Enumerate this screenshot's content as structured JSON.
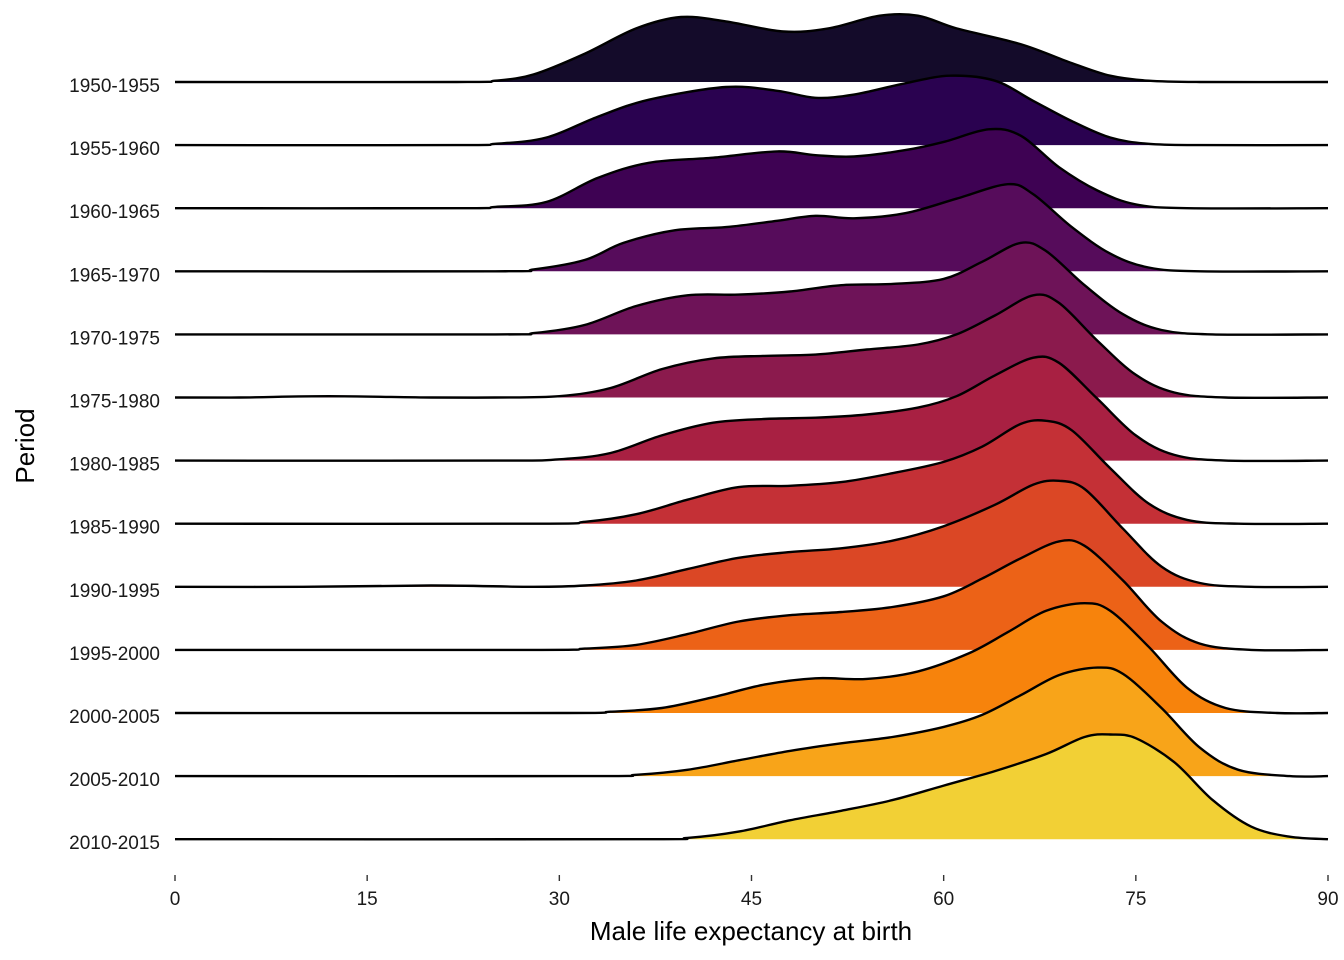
{
  "chart_data": {
    "type": "ridgeline",
    "title": "",
    "xlabel": "Male life expectancy at birth",
    "ylabel": "Period",
    "xlim": [
      0,
      90
    ],
    "x_ticks": [
      0,
      15,
      30,
      45,
      60,
      75,
      90
    ],
    "x_tick_labels": [
      "0",
      "15",
      "30",
      "45",
      "60",
      "75",
      "90"
    ],
    "grid": false,
    "legend": "none",
    "density_scale_note": "density values are relative ridge heights where 1.0 equals one row spacing",
    "series": [
      {
        "name": "1950-1955",
        "color": "#140b2a",
        "points": [
          [
            0,
            0
          ],
          [
            22,
            0
          ],
          [
            25,
            0.02
          ],
          [
            28,
            0.12
          ],
          [
            32,
            0.45
          ],
          [
            36,
            0.85
          ],
          [
            39.5,
            1.03
          ],
          [
            43,
            0.96
          ],
          [
            47.5,
            0.8
          ],
          [
            51,
            0.85
          ],
          [
            55,
            1.05
          ],
          [
            58,
            1.05
          ],
          [
            61,
            0.85
          ],
          [
            66,
            0.6
          ],
          [
            70,
            0.3
          ],
          [
            73,
            0.1
          ],
          [
            76,
            0.02
          ],
          [
            80,
            0
          ],
          [
            90,
            0
          ]
        ]
      },
      {
        "name": "1955-1960",
        "color": "#2a0250",
        "points": [
          [
            0,
            0
          ],
          [
            22,
            0
          ],
          [
            25,
            0.02
          ],
          [
            29,
            0.12
          ],
          [
            33,
            0.45
          ],
          [
            37,
            0.72
          ],
          [
            43,
            0.92
          ],
          [
            47,
            0.86
          ],
          [
            50,
            0.75
          ],
          [
            53,
            0.8
          ],
          [
            57,
            0.98
          ],
          [
            60.5,
            1.1
          ],
          [
            64,
            1.02
          ],
          [
            67,
            0.7
          ],
          [
            70,
            0.38
          ],
          [
            73,
            0.12
          ],
          [
            76,
            0.02
          ],
          [
            80,
            0
          ],
          [
            90,
            0
          ]
        ]
      },
      {
        "name": "1960-1965",
        "color": "#3e0253",
        "points": [
          [
            0,
            0
          ],
          [
            22,
            0
          ],
          [
            25,
            0.02
          ],
          [
            29,
            0.1
          ],
          [
            33,
            0.48
          ],
          [
            37,
            0.72
          ],
          [
            42,
            0.8
          ],
          [
            47,
            0.9
          ],
          [
            50,
            0.84
          ],
          [
            53,
            0.82
          ],
          [
            57,
            0.92
          ],
          [
            60,
            1.05
          ],
          [
            63.5,
            1.25
          ],
          [
            66,
            1.15
          ],
          [
            69,
            0.65
          ],
          [
            72,
            0.28
          ],
          [
            75,
            0.06
          ],
          [
            79,
            0
          ],
          [
            90,
            0
          ]
        ]
      },
      {
        "name": "1965-1970",
        "color": "#560c5b",
        "points": [
          [
            0,
            0
          ],
          [
            25,
            0
          ],
          [
            28,
            0.03
          ],
          [
            32,
            0.18
          ],
          [
            35,
            0.45
          ],
          [
            39,
            0.65
          ],
          [
            43,
            0.7
          ],
          [
            47,
            0.8
          ],
          [
            50,
            0.88
          ],
          [
            53,
            0.84
          ],
          [
            57,
            0.92
          ],
          [
            61,
            1.15
          ],
          [
            65,
            1.38
          ],
          [
            67,
            1.22
          ],
          [
            70,
            0.7
          ],
          [
            73,
            0.28
          ],
          [
            76,
            0.06
          ],
          [
            80,
            0
          ],
          [
            90,
            0
          ]
        ]
      },
      {
        "name": "1970-1975",
        "color": "#6e1358",
        "points": [
          [
            0,
            0
          ],
          [
            25,
            0
          ],
          [
            28,
            0.02
          ],
          [
            32,
            0.15
          ],
          [
            36,
            0.45
          ],
          [
            40,
            0.62
          ],
          [
            44,
            0.63
          ],
          [
            48,
            0.68
          ],
          [
            52,
            0.78
          ],
          [
            56,
            0.8
          ],
          [
            60,
            0.88
          ],
          [
            63,
            1.15
          ],
          [
            66,
            1.45
          ],
          [
            68,
            1.32
          ],
          [
            71,
            0.78
          ],
          [
            74,
            0.32
          ],
          [
            77,
            0.07
          ],
          [
            81,
            0
          ],
          [
            90,
            0
          ]
        ]
      },
      {
        "name": "1975-1980",
        "color": "#8b1a4d",
        "points": [
          [
            0,
            0
          ],
          [
            5,
            0
          ],
          [
            12,
            0.02
          ],
          [
            20,
            0
          ],
          [
            25,
            0
          ],
          [
            30,
            0.02
          ],
          [
            34,
            0.15
          ],
          [
            38,
            0.45
          ],
          [
            42,
            0.62
          ],
          [
            46,
            0.66
          ],
          [
            50,
            0.68
          ],
          [
            54,
            0.76
          ],
          [
            58,
            0.84
          ],
          [
            61,
            1.0
          ],
          [
            64,
            1.3
          ],
          [
            67,
            1.62
          ],
          [
            69,
            1.5
          ],
          [
            72,
            0.9
          ],
          [
            75,
            0.36
          ],
          [
            78,
            0.08
          ],
          [
            82,
            0
          ],
          [
            90,
            0
          ]
        ]
      },
      {
        "name": "1980-1985",
        "color": "#a82042",
        "points": [
          [
            0,
            0
          ],
          [
            25,
            0
          ],
          [
            30,
            0.02
          ],
          [
            34,
            0.12
          ],
          [
            38,
            0.4
          ],
          [
            42,
            0.6
          ],
          [
            46,
            0.66
          ],
          [
            50,
            0.68
          ],
          [
            54,
            0.73
          ],
          [
            58,
            0.84
          ],
          [
            61,
            1.02
          ],
          [
            64,
            1.35
          ],
          [
            67,
            1.63
          ],
          [
            69,
            1.55
          ],
          [
            72,
            0.98
          ],
          [
            75,
            0.4
          ],
          [
            78,
            0.09
          ],
          [
            82,
            0
          ],
          [
            90,
            0
          ]
        ]
      },
      {
        "name": "1985-1990",
        "color": "#c43036",
        "points": [
          [
            0,
            0
          ],
          [
            28,
            0
          ],
          [
            32,
            0.03
          ],
          [
            36,
            0.15
          ],
          [
            40,
            0.38
          ],
          [
            44,
            0.58
          ],
          [
            48,
            0.6
          ],
          [
            52,
            0.66
          ],
          [
            56,
            0.8
          ],
          [
            60,
            0.98
          ],
          [
            63,
            1.22
          ],
          [
            66,
            1.58
          ],
          [
            68,
            1.63
          ],
          [
            70,
            1.48
          ],
          [
            73,
            0.88
          ],
          [
            76,
            0.32
          ],
          [
            79,
            0.06
          ],
          [
            83,
            0
          ],
          [
            90,
            0
          ]
        ]
      },
      {
        "name": "1990-1995",
        "color": "#db4725",
        "points": [
          [
            0,
            0
          ],
          [
            10,
            0
          ],
          [
            20,
            0.02
          ],
          [
            28,
            0
          ],
          [
            32,
            0.02
          ],
          [
            36,
            0.1
          ],
          [
            40,
            0.28
          ],
          [
            44,
            0.46
          ],
          [
            48,
            0.55
          ],
          [
            52,
            0.61
          ],
          [
            56,
            0.73
          ],
          [
            60,
            0.96
          ],
          [
            64,
            1.3
          ],
          [
            67,
            1.62
          ],
          [
            69,
            1.68
          ],
          [
            71,
            1.55
          ],
          [
            74,
            0.92
          ],
          [
            77,
            0.32
          ],
          [
            80,
            0.06
          ],
          [
            84,
            0
          ],
          [
            90,
            0
          ]
        ]
      },
      {
        "name": "1995-2000",
        "color": "#ec6217",
        "points": [
          [
            0,
            0
          ],
          [
            28,
            0
          ],
          [
            32,
            0.02
          ],
          [
            36,
            0.08
          ],
          [
            40,
            0.25
          ],
          [
            44,
            0.45
          ],
          [
            48,
            0.55
          ],
          [
            52,
            0.6
          ],
          [
            56,
            0.68
          ],
          [
            60,
            0.85
          ],
          [
            63,
            1.13
          ],
          [
            66,
            1.45
          ],
          [
            69,
            1.72
          ],
          [
            71,
            1.65
          ],
          [
            74,
            1.1
          ],
          [
            77,
            0.45
          ],
          [
            80,
            0.1
          ],
          [
            84,
            0
          ],
          [
            90,
            0
          ]
        ]
      },
      {
        "name": "2000-2005",
        "color": "#f7830c",
        "points": [
          [
            0,
            0
          ],
          [
            30,
            0
          ],
          [
            34,
            0.02
          ],
          [
            38,
            0.08
          ],
          [
            42,
            0.25
          ],
          [
            46,
            0.45
          ],
          [
            50,
            0.55
          ],
          [
            54,
            0.54
          ],
          [
            58,
            0.66
          ],
          [
            62,
            0.95
          ],
          [
            65,
            1.28
          ],
          [
            68,
            1.62
          ],
          [
            71,
            1.74
          ],
          [
            73,
            1.62
          ],
          [
            76,
            1.05
          ],
          [
            79,
            0.4
          ],
          [
            82,
            0.08
          ],
          [
            86,
            0
          ],
          [
            90,
            0
          ]
        ]
      },
      {
        "name": "2005-2010",
        "color": "#f8a419",
        "points": [
          [
            0,
            0
          ],
          [
            32,
            0
          ],
          [
            36,
            0.02
          ],
          [
            40,
            0.1
          ],
          [
            44,
            0.25
          ],
          [
            48,
            0.4
          ],
          [
            52,
            0.52
          ],
          [
            56,
            0.62
          ],
          [
            60,
            0.78
          ],
          [
            63,
            0.97
          ],
          [
            66,
            1.28
          ],
          [
            69,
            1.6
          ],
          [
            72,
            1.72
          ],
          [
            74,
            1.62
          ],
          [
            77,
            1.08
          ],
          [
            80,
            0.45
          ],
          [
            83,
            0.1
          ],
          [
            87,
            0
          ],
          [
            90,
            0
          ]
        ]
      },
      {
        "name": "2010-2015",
        "color": "#f2d035",
        "points": [
          [
            0,
            0
          ],
          [
            36,
            0
          ],
          [
            40,
            0.02
          ],
          [
            44,
            0.12
          ],
          [
            48,
            0.3
          ],
          [
            52,
            0.45
          ],
          [
            56,
            0.62
          ],
          [
            60,
            0.85
          ],
          [
            64,
            1.08
          ],
          [
            68,
            1.35
          ],
          [
            71,
            1.62
          ],
          [
            73,
            1.66
          ],
          [
            75,
            1.6
          ],
          [
            78,
            1.22
          ],
          [
            81,
            0.62
          ],
          [
            84,
            0.2
          ],
          [
            87,
            0.04
          ],
          [
            90,
            0
          ]
        ]
      }
    ]
  }
}
